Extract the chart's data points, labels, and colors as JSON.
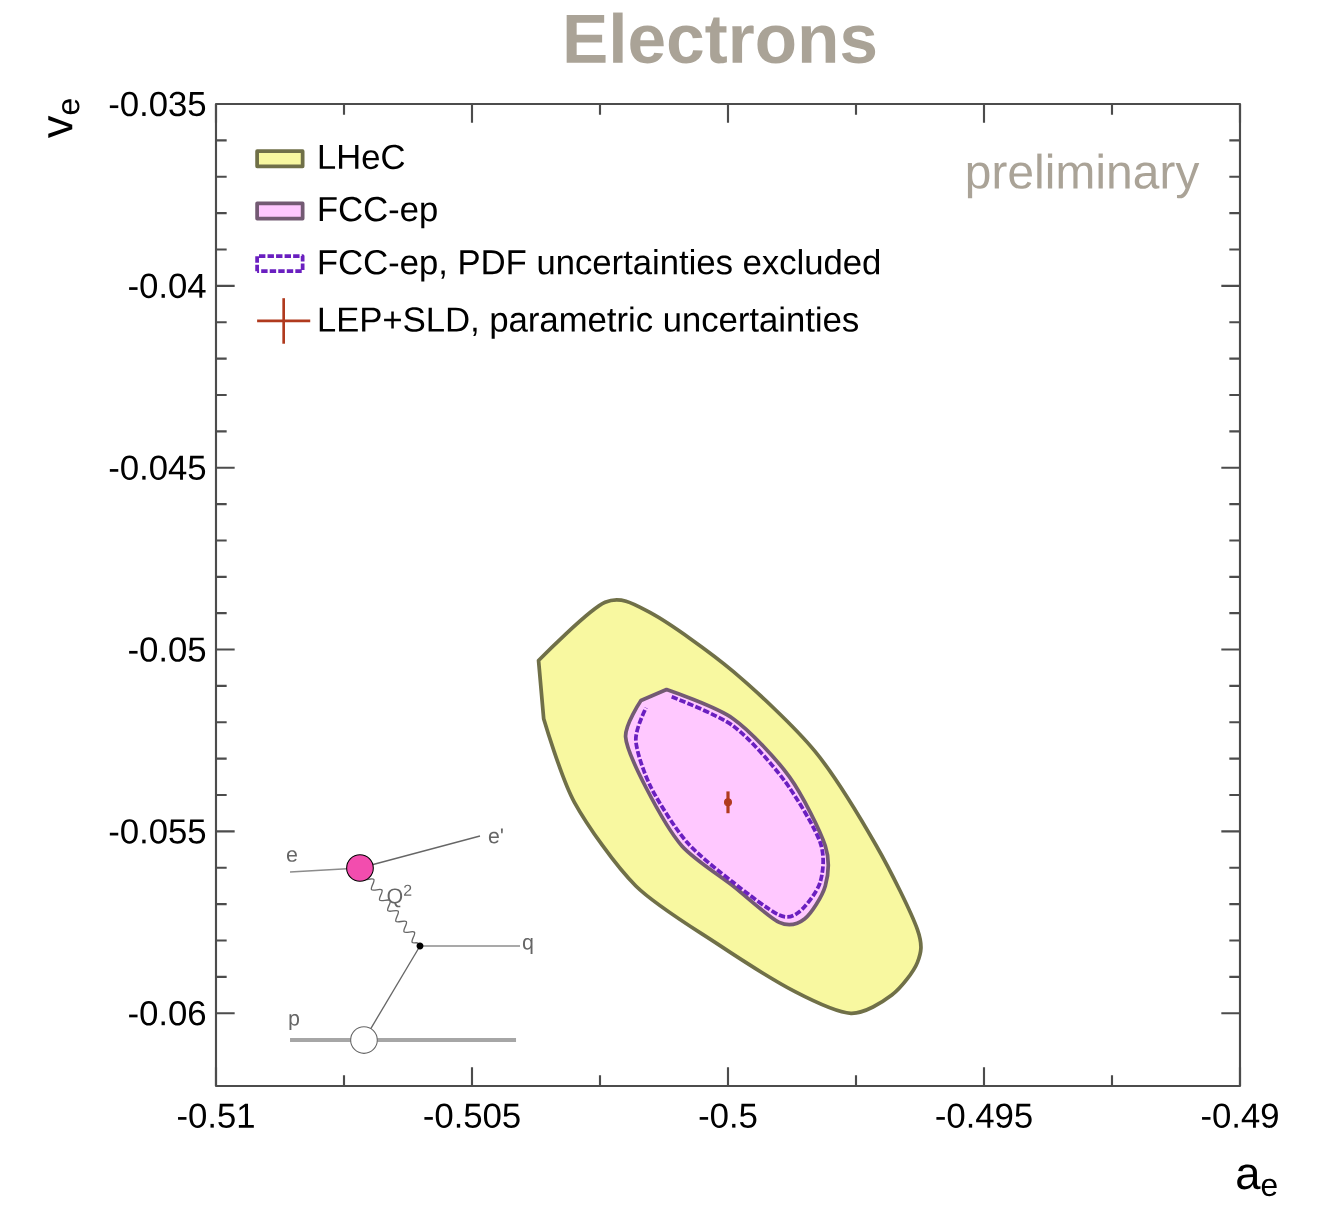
{
  "chart_data": {
    "type": "area",
    "title": "Electrons",
    "xlabel": "a$_{e}$",
    "ylabel": "v$_{e}$",
    "xlim": [
      -0.51,
      -0.49
    ],
    "ylim": [
      -0.062,
      -0.035
    ],
    "xticks": [
      -0.51,
      -0.505,
      -0.5,
      -0.495,
      -0.49
    ],
    "yticks": [
      -0.06,
      -0.055,
      -0.05,
      -0.045,
      -0.04,
      -0.035
    ],
    "grid": false,
    "legend": "top left",
    "marker": "none",
    "annotations": [
      "preliminary",
      "e",
      "e'",
      "Q$^{2}$",
      "q",
      "p"
    ],
    "series": [
      {
        "name": "LHeC",
        "color": "#f8f8a0",
        "line_style": "solid",
        "x": [
          -0.5037,
          -0.5024,
          -0.5015,
          -0.4999,
          -0.4983,
          -0.4971,
          -0.4963,
          -0.4963,
          -0.4968,
          -0.4976,
          -0.4987,
          -0.5002,
          -0.5018,
          -0.503,
          -0.5036
        ],
        "values": [
          -0.0503,
          -0.0487,
          -0.049,
          -0.0506,
          -0.0528,
          -0.0554,
          -0.0577,
          -0.0586,
          -0.0595,
          -0.06,
          -0.0594,
          -0.0581,
          -0.0565,
          -0.0542,
          -0.0519
        ]
      },
      {
        "name": "FCC-ep",
        "color": "#ffc8ff",
        "line_style": "solid",
        "x": [
          -0.5012,
          -0.4999,
          -0.4988,
          -0.4981,
          -0.4981,
          -0.4985,
          -0.499,
          -0.4999,
          -0.5009,
          -0.5016,
          -0.502,
          -0.5017
        ],
        "values": [
          -0.0511,
          -0.0519,
          -0.0535,
          -0.0554,
          -0.0565,
          -0.0574,
          -0.0575,
          -0.0565,
          -0.0554,
          -0.0538,
          -0.0524,
          -0.0514
        ]
      },
      {
        "name": "FCC-ep, PDF uncertainties excluded",
        "type": "line",
        "color": "#6a1fc0",
        "line_style": "dotted",
        "x": [
          -0.5011,
          -0.4999,
          -0.4989,
          -0.4982,
          -0.4982,
          -0.4986,
          -0.499,
          -0.4999,
          -0.5008,
          -0.5015,
          -0.5018,
          -0.5016
        ],
        "values": [
          -0.0513,
          -0.0521,
          -0.0536,
          -0.0553,
          -0.0564,
          -0.0572,
          -0.0573,
          -0.0564,
          -0.0553,
          -0.0538,
          -0.0525,
          -0.0516
        ]
      },
      {
        "name": "LEP+SLD, parametric uncertainties",
        "type": "scatter",
        "color": "#b03a1e",
        "marker": "circle",
        "x": [
          -0.5
        ],
        "values": [
          -0.0542
        ],
        "errors": [
          0.0003
        ]
      }
    ]
  }
}
